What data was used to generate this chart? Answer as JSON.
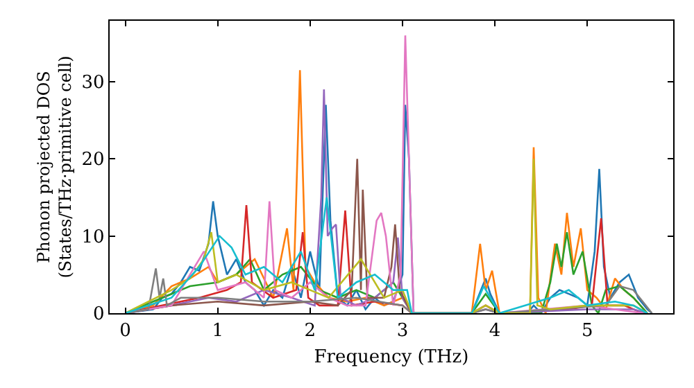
{
  "chart_data": {
    "type": "line",
    "xlabel": "Frequency (THz)",
    "ylabel": "Phonon projected DOS\n(States/THz·primitive cell)",
    "xlim": [
      -0.17,
      5.93
    ],
    "ylim": [
      0,
      37.9
    ],
    "xticks": [
      0,
      1,
      2,
      3,
      4,
      5
    ],
    "yticks": [
      0,
      10,
      20,
      30
    ],
    "marker": "none",
    "line_style": "solid",
    "series": [
      {
        "color": "#1f77b4",
        "x": [
          0,
          0.3,
          0.4,
          0.5,
          0.6,
          0.7,
          0.8,
          0.9,
          0.95,
          1.0,
          1.1,
          1.2,
          1.3,
          1.4,
          1.5,
          1.6,
          1.7,
          1.8,
          1.9,
          2.0,
          2.1,
          2.17,
          2.22,
          2.3,
          2.4,
          2.5,
          2.6,
          2.7,
          2.8,
          2.9,
          3.0,
          3.03,
          3.07,
          3.12,
          3.75,
          3.85,
          3.9,
          3.95,
          4.05,
          4.35,
          4.42,
          4.5,
          4.6,
          4.7,
          4.8,
          4.9,
          5.0,
          5.08,
          5.13,
          5.18,
          5.25,
          5.35,
          5.45,
          5.55,
          5.65,
          5.7
        ],
        "values": [
          0,
          0.5,
          2,
          2.5,
          4,
          6,
          5.5,
          9,
          14.5,
          10,
          5,
          7,
          4,
          3,
          1,
          3,
          2,
          6,
          2,
          8,
          3,
          27,
          12,
          2,
          1,
          3,
          0.5,
          2,
          1,
          1.5,
          5,
          27,
          20,
          0,
          0,
          3,
          4.5,
          2.5,
          0,
          0,
          1,
          0,
          2,
          3,
          2.5,
          2,
          1,
          8,
          18.7,
          6,
          2,
          4,
          5,
          2,
          0.5,
          0
        ]
      },
      {
        "color": "#ff7f0e",
        "x": [
          0,
          0.3,
          0.5,
          0.7,
          0.9,
          1.0,
          1.2,
          1.4,
          1.6,
          1.75,
          1.82,
          1.89,
          1.95,
          2.05,
          2.2,
          2.4,
          2.6,
          2.8,
          3.0,
          3.1,
          3.75,
          3.84,
          3.9,
          3.97,
          4.05,
          4.38,
          4.42,
          4.47,
          4.55,
          4.65,
          4.72,
          4.78,
          4.85,
          4.93,
          5.0,
          5.1,
          5.2,
          5.3,
          5.4,
          5.5,
          5.65
        ],
        "values": [
          0,
          1,
          3.5,
          4.5,
          6,
          4,
          5,
          7,
          2,
          11,
          3,
          31.5,
          6,
          4,
          2,
          1.5,
          2,
          1,
          2,
          0,
          0,
          9,
          3,
          5.5,
          0,
          0,
          21.5,
          2,
          0,
          9,
          5,
          13,
          6,
          11,
          3,
          2,
          0.5,
          4.5,
          3,
          2,
          0
        ]
      },
      {
        "color": "#2ca02c",
        "x": [
          0,
          0.4,
          0.7,
          1.0,
          1.2,
          1.35,
          1.5,
          1.7,
          1.9,
          2.1,
          2.3,
          2.5,
          2.7,
          2.9,
          3.1,
          3.75,
          3.9,
          4.05,
          4.5,
          4.6,
          4.67,
          4.72,
          4.78,
          4.85,
          4.95,
          5.05,
          5.12,
          5.2,
          5.35,
          5.5,
          5.65
        ],
        "values": [
          0,
          2,
          3.5,
          4,
          5,
          7,
          3,
          5,
          6,
          3,
          2,
          3,
          2,
          4,
          0,
          0,
          2.5,
          0,
          0,
          4,
          9,
          6,
          10.5,
          5,
          8,
          1,
          0,
          3,
          3.5,
          2,
          0
        ]
      },
      {
        "color": "#d62728",
        "x": [
          0,
          0.4,
          0.8,
          1.1,
          1.25,
          1.31,
          1.37,
          1.6,
          1.85,
          1.92,
          1.98,
          2.1,
          2.3,
          2.38,
          2.45,
          2.7,
          3.0,
          3.1,
          3.75,
          3.9,
          4.05,
          4.8,
          5.05,
          5.15,
          5.22,
          5.4,
          5.6
        ],
        "values": [
          0,
          1,
          2,
          3,
          4,
          14,
          4,
          2,
          3,
          10.5,
          2,
          1,
          1,
          13.3,
          1,
          1.5,
          1,
          0,
          0,
          1,
          0,
          0.5,
          1,
          12.3,
          1,
          1,
          0
        ]
      },
      {
        "color": "#9467bd",
        "x": [
          0,
          0.5,
          0.9,
          1.2,
          1.5,
          1.8,
          2.05,
          2.12,
          2.15,
          2.19,
          2.24,
          2.28,
          2.33,
          2.5,
          2.7,
          2.9,
          2.95,
          3.0,
          3.1,
          3.75,
          3.9,
          4.05,
          5.0,
          5.5,
          5.65
        ],
        "values": [
          0,
          1,
          2,
          1.5,
          3,
          2,
          1,
          15,
          29,
          10,
          11,
          11.5,
          2,
          1,
          2,
          4,
          9.8,
          2,
          0,
          0,
          0.5,
          0,
          0.5,
          0.5,
          0
        ]
      },
      {
        "color": "#8c564b",
        "x": [
          0,
          0.5,
          1.0,
          1.5,
          2.0,
          2.3,
          2.45,
          2.51,
          2.55,
          2.57,
          2.62,
          2.8,
          2.88,
          2.92,
          2.97,
          3.1
        ],
        "values": [
          0,
          1,
          1.5,
          1,
          1.5,
          1,
          3,
          20,
          3,
          16,
          2,
          2,
          6,
          11.5,
          3,
          0
        ]
      },
      {
        "color": "#e377c2",
        "x": [
          0,
          0.5,
          0.85,
          1.0,
          1.3,
          1.5,
          1.56,
          1.62,
          1.8,
          2.0,
          2.2,
          2.4,
          2.6,
          2.72,
          2.77,
          2.82,
          2.9,
          2.98,
          3.03,
          3.07,
          3.12,
          3.75,
          3.9,
          4.05,
          5.0,
          5.3,
          5.6
        ],
        "values": [
          0,
          1,
          8,
          3,
          4,
          2,
          14.5,
          3,
          2,
          4,
          2,
          1,
          1,
          12,
          13,
          10,
          1,
          5,
          36,
          20,
          0,
          0,
          1,
          0,
          1,
          0.5,
          0
        ]
      },
      {
        "color": "#7f7f7f",
        "x": [
          0,
          0.25,
          0.33,
          0.37,
          0.41,
          0.45,
          0.6,
          1.0,
          1.5,
          2.0,
          2.5,
          3.0,
          3.1,
          3.75,
          3.9,
          4.05,
          5.2,
          5.35,
          5.5,
          5.6,
          5.7
        ],
        "values": [
          0,
          0.5,
          5.8,
          2,
          4.5,
          1,
          2,
          2,
          1.5,
          1.5,
          2,
          1,
          0,
          0,
          0.5,
          0,
          1,
          3.5,
          3,
          1.5,
          0
        ]
      },
      {
        "color": "#bcbd22",
        "x": [
          0,
          0.5,
          0.7,
          0.85,
          0.93,
          1.0,
          1.2,
          1.5,
          1.8,
          2.0,
          2.2,
          2.55,
          2.8,
          3.0,
          3.1,
          3.75,
          3.9,
          4.05,
          4.38,
          4.42,
          4.46,
          4.6,
          5.0,
          5.5,
          5.65
        ],
        "values": [
          0,
          3,
          4.5,
          7,
          10.5,
          4,
          5,
          3,
          4,
          3,
          2,
          7,
          2,
          3,
          0,
          0,
          1,
          0,
          0,
          20,
          1,
          0.5,
          1,
          1,
          0
        ]
      },
      {
        "color": "#17becf",
        "x": [
          0,
          0.5,
          0.8,
          1.02,
          1.15,
          1.3,
          1.5,
          1.7,
          1.9,
          2.05,
          2.18,
          2.3,
          2.5,
          2.7,
          2.9,
          3.05,
          3.1,
          3.75,
          3.88,
          3.95,
          4.05,
          4.6,
          4.8,
          5.0,
          5.3,
          5.5,
          5.65
        ],
        "values": [
          0,
          2,
          6,
          10,
          8.5,
          5,
          6,
          4,
          8,
          3,
          15,
          2,
          4,
          5,
          3,
          3,
          0,
          0,
          3.5,
          2,
          0,
          2,
          3,
          1,
          1.5,
          1,
          0
        ]
      }
    ]
  }
}
